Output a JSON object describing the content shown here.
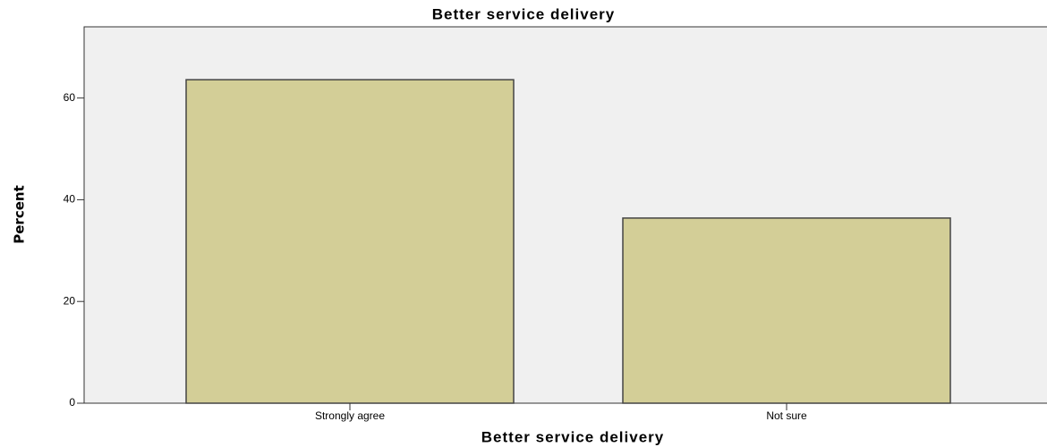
{
  "chart_data": {
    "type": "bar",
    "title": "Better service delivery",
    "x_label": "Better service delivery",
    "y_label": "Percent",
    "categories": [
      "Strongly agree",
      "Not sure"
    ],
    "values": [
      63.6,
      36.4
    ],
    "color": "#d3ce97",
    "ylim": [
      0,
      74
    ],
    "yticks": [
      0,
      20,
      40,
      60
    ],
    "grid": false
  }
}
